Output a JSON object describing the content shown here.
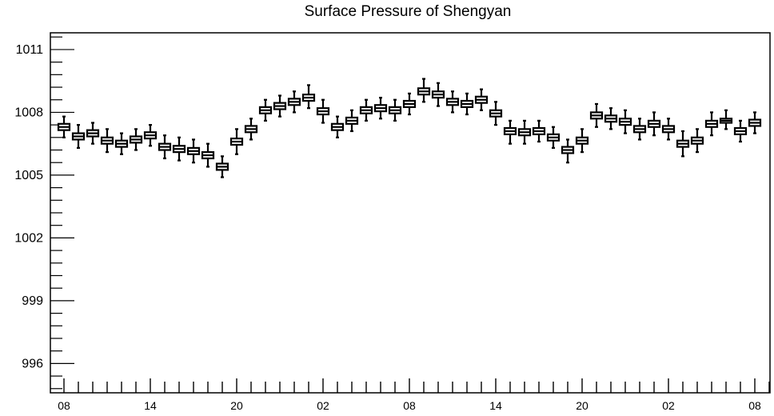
{
  "chart_data": {
    "type": "box",
    "title": "Surface Pressure of Shengyan",
    "xlabel": "",
    "ylabel": "",
    "ylim": [
      994.6,
      1011.8
    ],
    "yticks": [
      996,
      999,
      1002,
      1005,
      1008,
      1011
    ],
    "ytick_labels": [
      "996",
      "999",
      "1002",
      "1005",
      "1008",
      "1011"
    ],
    "xlim": [
      0,
      49.3
    ],
    "xticks": [
      0,
      6,
      12,
      18,
      24,
      30,
      36,
      42,
      48
    ],
    "xtick_labels": [
      "08",
      "14",
      "20",
      "02",
      "08",
      "14",
      "20",
      "02",
      "08"
    ],
    "grid": false,
    "color": "#000000",
    "boxes": [
      {
        "x": 0,
        "min": 1006.8,
        "q1": 1007.15,
        "median": 1007.3,
        "q3": 1007.45,
        "max": 1007.8
      },
      {
        "x": 1,
        "min": 1006.3,
        "q1": 1006.7,
        "median": 1006.85,
        "q3": 1007.0,
        "max": 1007.4
      },
      {
        "x": 2,
        "min": 1006.5,
        "q1": 1006.85,
        "median": 1007.0,
        "q3": 1007.15,
        "max": 1007.5
      },
      {
        "x": 3,
        "min": 1006.1,
        "q1": 1006.5,
        "median": 1006.65,
        "q3": 1006.8,
        "max": 1007.2
      },
      {
        "x": 4,
        "min": 1006.0,
        "q1": 1006.35,
        "median": 1006.5,
        "q3": 1006.65,
        "max": 1007.0
      },
      {
        "x": 5,
        "min": 1006.2,
        "q1": 1006.55,
        "median": 1006.7,
        "q3": 1006.85,
        "max": 1007.2
      },
      {
        "x": 6,
        "min": 1006.4,
        "q1": 1006.75,
        "median": 1006.9,
        "q3": 1007.05,
        "max": 1007.4
      },
      {
        "x": 7,
        "min": 1005.8,
        "q1": 1006.2,
        "median": 1006.35,
        "q3": 1006.5,
        "max": 1006.9
      },
      {
        "x": 8,
        "min": 1005.7,
        "q1": 1006.1,
        "median": 1006.25,
        "q3": 1006.4,
        "max": 1006.8
      },
      {
        "x": 9,
        "min": 1005.6,
        "q1": 1006.0,
        "median": 1006.15,
        "q3": 1006.3,
        "max": 1006.7
      },
      {
        "x": 10,
        "min": 1005.4,
        "q1": 1005.8,
        "median": 1005.95,
        "q3": 1006.1,
        "max": 1006.5
      },
      {
        "x": 11,
        "min": 1004.9,
        "q1": 1005.25,
        "median": 1005.4,
        "q3": 1005.55,
        "max": 1005.9
      },
      {
        "x": 12,
        "min": 1006.0,
        "q1": 1006.45,
        "median": 1006.6,
        "q3": 1006.75,
        "max": 1007.2
      },
      {
        "x": 13,
        "min": 1006.7,
        "q1": 1007.05,
        "median": 1007.2,
        "q3": 1007.35,
        "max": 1007.7
      },
      {
        "x": 14,
        "min": 1007.6,
        "q1": 1007.95,
        "median": 1008.1,
        "q3": 1008.25,
        "max": 1008.6
      },
      {
        "x": 15,
        "min": 1007.8,
        "q1": 1008.15,
        "median": 1008.3,
        "q3": 1008.45,
        "max": 1008.8
      },
      {
        "x": 16,
        "min": 1008.0,
        "q1": 1008.35,
        "median": 1008.5,
        "q3": 1008.65,
        "max": 1009.0
      },
      {
        "x": 17,
        "min": 1008.2,
        "q1": 1008.55,
        "median": 1008.7,
        "q3": 1008.85,
        "max": 1009.3
      },
      {
        "x": 18,
        "min": 1007.5,
        "q1": 1007.9,
        "median": 1008.05,
        "q3": 1008.2,
        "max": 1008.6
      },
      {
        "x": 19,
        "min": 1006.8,
        "q1": 1007.15,
        "median": 1007.3,
        "q3": 1007.45,
        "max": 1007.8
      },
      {
        "x": 20,
        "min": 1007.1,
        "q1": 1007.45,
        "median": 1007.6,
        "q3": 1007.75,
        "max": 1008.1
      },
      {
        "x": 21,
        "min": 1007.6,
        "q1": 1007.95,
        "median": 1008.1,
        "q3": 1008.25,
        "max": 1008.6
      },
      {
        "x": 22,
        "min": 1007.7,
        "q1": 1008.05,
        "median": 1008.2,
        "q3": 1008.35,
        "max": 1008.7
      },
      {
        "x": 23,
        "min": 1007.6,
        "q1": 1007.95,
        "median": 1008.1,
        "q3": 1008.25,
        "max": 1008.6
      },
      {
        "x": 24,
        "min": 1007.9,
        "q1": 1008.25,
        "median": 1008.4,
        "q3": 1008.55,
        "max": 1008.9
      },
      {
        "x": 25,
        "min": 1008.5,
        "q1": 1008.85,
        "median": 1009.0,
        "q3": 1009.15,
        "max": 1009.6
      },
      {
        "x": 26,
        "min": 1008.3,
        "q1": 1008.7,
        "median": 1008.85,
        "q3": 1009.0,
        "max": 1009.4
      },
      {
        "x": 27,
        "min": 1008.0,
        "q1": 1008.35,
        "median": 1008.5,
        "q3": 1008.65,
        "max": 1009.0
      },
      {
        "x": 28,
        "min": 1007.9,
        "q1": 1008.25,
        "median": 1008.4,
        "q3": 1008.55,
        "max": 1008.9
      },
      {
        "x": 29,
        "min": 1008.1,
        "q1": 1008.45,
        "median": 1008.6,
        "q3": 1008.75,
        "max": 1009.1
      },
      {
        "x": 30,
        "min": 1007.4,
        "q1": 1007.8,
        "median": 1007.95,
        "q3": 1008.1,
        "max": 1008.5
      },
      {
        "x": 31,
        "min": 1006.5,
        "q1": 1006.95,
        "median": 1007.1,
        "q3": 1007.25,
        "max": 1007.6
      },
      {
        "x": 32,
        "min": 1006.5,
        "q1": 1006.9,
        "median": 1007.05,
        "q3": 1007.2,
        "max": 1007.6
      },
      {
        "x": 33,
        "min": 1006.6,
        "q1": 1006.95,
        "median": 1007.1,
        "q3": 1007.25,
        "max": 1007.6
      },
      {
        "x": 34,
        "min": 1006.3,
        "q1": 1006.65,
        "median": 1006.8,
        "q3": 1006.95,
        "max": 1007.3
      },
      {
        "x": 35,
        "min": 1005.6,
        "q1": 1006.05,
        "median": 1006.2,
        "q3": 1006.35,
        "max": 1006.7
      },
      {
        "x": 36,
        "min": 1006.1,
        "q1": 1006.5,
        "median": 1006.65,
        "q3": 1006.8,
        "max": 1007.2
      },
      {
        "x": 37,
        "min": 1007.3,
        "q1": 1007.7,
        "median": 1007.85,
        "q3": 1008.0,
        "max": 1008.4
      },
      {
        "x": 38,
        "min": 1007.2,
        "q1": 1007.55,
        "median": 1007.7,
        "q3": 1007.85,
        "max": 1008.2
      },
      {
        "x": 39,
        "min": 1007.0,
        "q1": 1007.4,
        "median": 1007.55,
        "q3": 1007.7,
        "max": 1008.1
      },
      {
        "x": 40,
        "min": 1006.7,
        "q1": 1007.05,
        "median": 1007.2,
        "q3": 1007.35,
        "max": 1007.7
      },
      {
        "x": 41,
        "min": 1006.9,
        "q1": 1007.3,
        "median": 1007.45,
        "q3": 1007.6,
        "max": 1008.0
      },
      {
        "x": 42,
        "min": 1006.7,
        "q1": 1007.05,
        "median": 1007.2,
        "q3": 1007.35,
        "max": 1007.7
      },
      {
        "x": 43,
        "min": 1005.9,
        "q1": 1006.35,
        "median": 1006.5,
        "q3": 1006.65,
        "max": 1007.1
      },
      {
        "x": 44,
        "min": 1006.1,
        "q1": 1006.5,
        "median": 1006.65,
        "q3": 1006.8,
        "max": 1007.2
      },
      {
        "x": 45,
        "min": 1006.9,
        "q1": 1007.3,
        "median": 1007.45,
        "q3": 1007.6,
        "max": 1008.0
      },
      {
        "x": 46,
        "min": 1007.2,
        "q1": 1007.5,
        "median": 1007.6,
        "q3": 1007.7,
        "max": 1008.1
      },
      {
        "x": 47,
        "min": 1006.6,
        "q1": 1006.95,
        "median": 1007.1,
        "q3": 1007.25,
        "max": 1007.6
      },
      {
        "x": 48,
        "min": 1007.0,
        "q1": 1007.35,
        "median": 1007.5,
        "q3": 1007.65,
        "max": 1008.0
      }
    ]
  }
}
